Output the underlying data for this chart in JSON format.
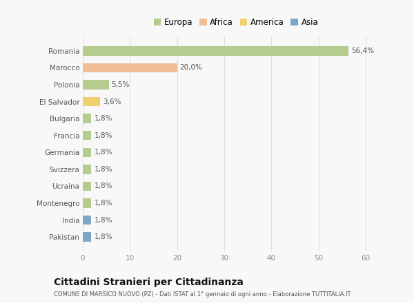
{
  "categories": [
    "Romania",
    "Marocco",
    "Polonia",
    "El Salvador",
    "Bulgaria",
    "Francia",
    "Germania",
    "Svizzera",
    "Ucraina",
    "Montenegro",
    "India",
    "Pakistan"
  ],
  "values": [
    56.4,
    20.0,
    5.5,
    3.6,
    1.8,
    1.8,
    1.8,
    1.8,
    1.8,
    1.8,
    1.8,
    1.8
  ],
  "labels": [
    "56,4%",
    "20,0%",
    "5,5%",
    "3,6%",
    "1,8%",
    "1,8%",
    "1,8%",
    "1,8%",
    "1,8%",
    "1,8%",
    "1,8%",
    "1,8%"
  ],
  "colors": [
    "#b5cc8e",
    "#f0bc94",
    "#b5cc8e",
    "#f0d070",
    "#b5cc8e",
    "#b5cc8e",
    "#b5cc8e",
    "#b5cc8e",
    "#b5cc8e",
    "#b5cc8e",
    "#7da7c8",
    "#7da7c8"
  ],
  "legend_labels": [
    "Europa",
    "Africa",
    "America",
    "Asia"
  ],
  "legend_colors": [
    "#b5cc8e",
    "#f0bc94",
    "#f0d070",
    "#7da7c8"
  ],
  "xlim": [
    0,
    65
  ],
  "xticks": [
    0,
    10,
    20,
    30,
    40,
    50,
    60
  ],
  "title": "Cittadini Stranieri per Cittadinanza",
  "subtitle": "COMUNE DI MARSICO NUOVO (PZ) - Dati ISTAT al 1° gennaio di ogni anno - Elaborazione TUTTITALIA.IT",
  "bg_color": "#f8f8f8",
  "grid_color": "#e0e0e0",
  "bar_height": 0.55
}
